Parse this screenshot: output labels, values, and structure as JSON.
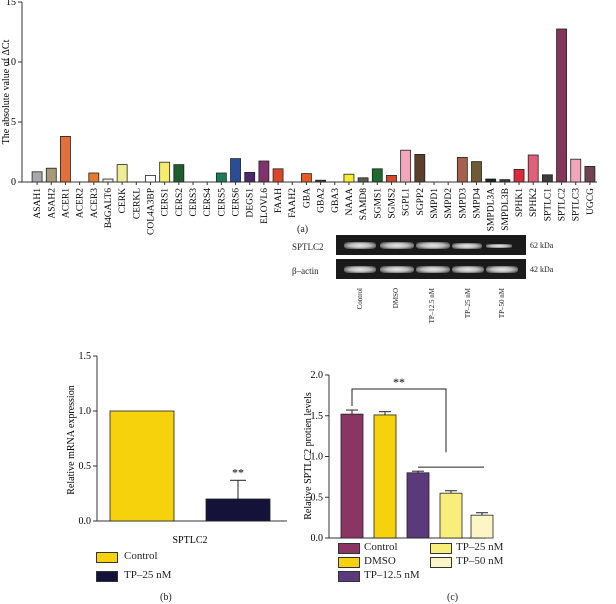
{
  "chart_data": [
    {
      "panel": "(a)",
      "type": "bar",
      "ylabel": "The absolute value of ΔCt",
      "ylim": [
        0,
        15
      ],
      "yticks": [
        0,
        5,
        10,
        15
      ],
      "categories": [
        "ASAH1",
        "ASAH2",
        "ACER1",
        "ACER2",
        "ACER3",
        "B4GALT6",
        "CERK",
        "CERKL",
        "COL4A3BP",
        "CERS1",
        "CERS2",
        "CERS3",
        "CERS4",
        "CERS5",
        "CERS6",
        "DEGS1",
        "ELOVL6",
        "FAAH",
        "FAAH2",
        "GBA",
        "GBA2",
        "GBA3",
        "NAAA",
        "SAMD8",
        "SGMS1",
        "SGMS2",
        "SGPL1",
        "SGPP2",
        "SMPD1",
        "SMPD2",
        "SMPD3",
        "SMPD4",
        "SMPDL3A",
        "SMPDL3B",
        "SPHK1",
        "SPHK2",
        "SPTLC1",
        "SPTLC2",
        "SPTLC3",
        "UGCG"
      ],
      "values": [
        0.85,
        1.15,
        3.8,
        0.0,
        0.75,
        0.25,
        1.45,
        0.0,
        0.55,
        1.65,
        1.45,
        0.0,
        0.0,
        0.75,
        1.95,
        0.8,
        1.75,
        1.1,
        0.0,
        0.7,
        0.15,
        0.0,
        0.65,
        0.35,
        1.1,
        0.55,
        2.65,
        2.3,
        0.0,
        0.0,
        2.05,
        1.7,
        0.25,
        0.2,
        1.05,
        2.25,
        0.6,
        12.75,
        1.9,
        1.3
      ],
      "colors": [
        "#a8a8a8",
        "#a89a78",
        "#e2703c",
        "#ffffff",
        "#e07c2e",
        "#ebe7df",
        "#f0ec94",
        "#ffffff",
        "#ffffff",
        "#f4ed6c",
        "#1f5e2c",
        "#ffffff",
        "#ffffff",
        "#1f7a5c",
        "#2a4d96",
        "#4d2868",
        "#80326c",
        "#d8472c",
        "#ffffff",
        "#e85a22",
        "#3d3d3d",
        "#ffffff",
        "#f5ec30",
        "#5a5a50",
        "#1d6a2d",
        "#d24830",
        "#f2a6bc",
        "#5c3e2a",
        "#ffffff",
        "#ffffff",
        "#a8604e",
        "#6e5a34",
        "#1e1e1e",
        "#3a3a3a",
        "#dc2a3c",
        "#e0607a",
        "#3d3d3d",
        "#84365a",
        "#f2a6bc",
        "#6e4250"
      ]
    },
    {
      "panel": "(b)",
      "type": "bar",
      "ylabel": "Relative mRNA expression",
      "xlabel": "SPTLC2",
      "ylim": [
        0,
        1.5
      ],
      "yticks": [
        0.0,
        0.5,
        1.0,
        1.5
      ],
      "series": [
        {
          "name": "Control",
          "value": 1.0,
          "error": 0.0,
          "color": "#f5d20c"
        },
        {
          "name": "TP–25 nM",
          "value": 0.2,
          "error": 0.17,
          "color": "#141238"
        }
      ],
      "annotation": "**"
    },
    {
      "panel": "(c)",
      "type": "bar",
      "ylabel": "Relative SPTLC2 protien levels",
      "ylim": [
        0,
        2.0
      ],
      "yticks": [
        0.0,
        0.5,
        1.0,
        1.5,
        2.0
      ],
      "categories": [
        "Control",
        "DMSO",
        "TP–12.5 nM",
        "TP–25 nM",
        "TP–50 nM"
      ],
      "values": [
        1.52,
        1.51,
        0.8,
        0.55,
        0.28
      ],
      "errors": [
        0.05,
        0.04,
        0.02,
        0.03,
        0.03
      ],
      "colors": [
        "#8a3564",
        "#f5d20c",
        "#5a3a7a",
        "#f7ee7c",
        "#fcf6c6"
      ],
      "annotation": "**"
    }
  ],
  "western_blot": {
    "rows": [
      {
        "label": "SPTLC2",
        "size": "62 kDa"
      },
      {
        "label": "β–actin",
        "size": "42 kDa"
      }
    ],
    "lanes": [
      "Control",
      "DMSO",
      "TP–12.5 nM",
      "TP–25 nM",
      "TP–50 nM"
    ]
  },
  "labels": {
    "panel_a": "(a)",
    "panel_b": "(b)",
    "panel_c": "(c)"
  }
}
